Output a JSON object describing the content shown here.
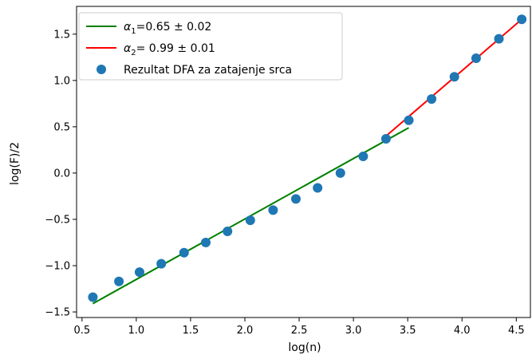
{
  "chart_data": {
    "type": "scatter",
    "title": "",
    "xlabel": "log(n)",
    "ylabel": "log(F)/2",
    "xlim": [
      0.45,
      4.63
    ],
    "ylim": [
      -1.56,
      1.8
    ],
    "xticks": [
      0.5,
      1.0,
      1.5,
      2.0,
      2.5,
      3.0,
      3.5,
      4.0,
      4.5
    ],
    "xtick_labels": [
      "0.5",
      "1.0",
      "1.5",
      "2.0",
      "2.5",
      "3.0",
      "3.5",
      "4.0",
      "4.5"
    ],
    "yticks": [
      -1.5,
      -1.0,
      -0.5,
      0.0,
      0.5,
      1.0,
      1.5
    ],
    "ytick_labels": [
      "−1.5",
      "−1.0",
      "−0.5",
      "0.0",
      "0.5",
      "1.0",
      "1.5"
    ],
    "grid": false,
    "legend_position": "top-left",
    "series": [
      {
        "name": "Rezultat DFA za zatajenje srca",
        "kind": "scatter",
        "color": "#1f77b4",
        "x": [
          0.6,
          0.84,
          1.03,
          1.23,
          1.44,
          1.64,
          1.84,
          2.05,
          2.26,
          2.47,
          2.67,
          2.88,
          3.09,
          3.3,
          3.51,
          3.72,
          3.93,
          4.13,
          4.34,
          4.55
        ],
        "y": [
          -1.34,
          -1.17,
          -1.07,
          -0.98,
          -0.86,
          -0.75,
          -0.63,
          -0.51,
          -0.4,
          -0.28,
          -0.16,
          0.0,
          0.18,
          0.37,
          0.57,
          0.8,
          1.04,
          1.24,
          1.45,
          1.66
        ]
      },
      {
        "name_parts": {
          "symbol": "α",
          "subscript": "1",
          "value": "=0.65 ± 0.02"
        },
        "kind": "line",
        "color": "#008000",
        "x": [
          0.6,
          3.51
        ],
        "y": [
          -1.41,
          0.49
        ]
      },
      {
        "name_parts": {
          "symbol": "α",
          "subscript": "2",
          "value": "= 0.99 ± 0.01"
        },
        "kind": "line",
        "color": "#ff0000",
        "x": [
          3.3,
          4.55
        ],
        "y": [
          0.4,
          1.66
        ]
      }
    ]
  }
}
